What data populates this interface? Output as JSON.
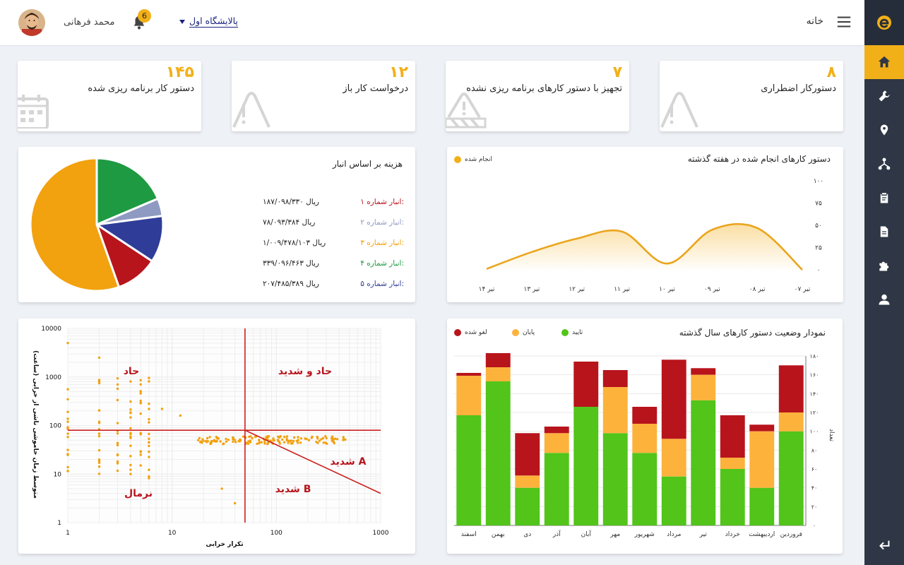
{
  "app": {
    "logo_icon": "logo-e-icon"
  },
  "header": {
    "title": "خانه",
    "warehouse_selected": "پالایشگاه اول",
    "notification_count": "6",
    "user_name": "محمد فرهانی"
  },
  "sidebar": {
    "items": [
      {
        "name": "home",
        "icon": "home-icon",
        "active": true
      },
      {
        "name": "tools",
        "icon": "wrench-icon",
        "active": false
      },
      {
        "name": "locations",
        "icon": "location-icon",
        "active": false
      },
      {
        "name": "structure",
        "icon": "hierarchy-icon",
        "active": false
      },
      {
        "name": "work-orders",
        "icon": "clipboard-icon",
        "active": false
      },
      {
        "name": "documents",
        "icon": "document-icon",
        "active": false
      },
      {
        "name": "parts",
        "icon": "puzzle-icon",
        "active": false
      },
      {
        "name": "users",
        "icon": "person-icon",
        "active": false
      }
    ],
    "logout_icon": "logout-icon"
  },
  "stats": [
    {
      "value": "۸",
      "label": "دستورکار اضطراری",
      "icon": "warning-icon"
    },
    {
      "value": "۷",
      "label": "تجهیز با دستور کارهای برنامه ریزی نشده",
      "icon": "warning-barrier-icon"
    },
    {
      "value": "۱۲",
      "label": "درخواست کار باز",
      "icon": "warning-icon"
    },
    {
      "value": "۱۴۵",
      "label": "دستور کار برنامه ریزی شده",
      "icon": "calendar-icon"
    }
  ],
  "pie": {
    "title": "هزینه بر اساس انبار",
    "rows": [
      {
        "name": "انبار شماره ۱:",
        "value": "۱۸۷/۰۹۸/۳۳۰ ریال",
        "color": "#b8141c"
      },
      {
        "name": "انبار شماره ۲:",
        "value": "۷۸/۰۹۳/۳۸۴ ریال",
        "color": "#8f9ac2"
      },
      {
        "name": "انبار شماره ۳:",
        "value": "۱/۰۰۹/۴۷۸/۱۰۳ ریال",
        "color": "#f2a10f"
      },
      {
        "name": "انبار شماره ۴:",
        "value": "۳۳۹/۰۹۶/۴۶۳ ریال",
        "color": "#1e9a42"
      },
      {
        "name": "انبار شماره ۵:",
        "value": "۲۰۷/۴۸۵/۳۸۹ ریال",
        "color": "#2f3d99"
      }
    ]
  },
  "colors": {
    "accent": "#f2b018",
    "green": "#52c41a",
    "orange": "#fdb23c",
    "red": "#b8141c"
  },
  "chart_data": [
    {
      "type": "pie",
      "title": "هزینه بر اساس انبار",
      "slices": [
        {
          "label": "انبار شماره ۱",
          "value": 187098330,
          "color": "#b8141c"
        },
        {
          "label": "انبار شماره ۲",
          "value": 78093384,
          "color": "#8f9ac2"
        },
        {
          "label": "انبار شماره ۳",
          "value": 1009478103,
          "color": "#f2a10f"
        },
        {
          "label": "انبار شماره ۴",
          "value": 339096463,
          "color": "#1e9a42"
        },
        {
          "label": "انبار شماره ۵",
          "value": 207485389,
          "color": "#2f3d99"
        }
      ]
    },
    {
      "type": "area",
      "title": "دستور کارهای انجام شده در هفته گذشته",
      "legend": "انجام شده",
      "categories": [
        "۱۴ تیر",
        "۱۳ تیر",
        "۱۲ تیر",
        "۱۱ تیر",
        "۱۰ تیر",
        "۰۹ تیر",
        "۰۸ تیر",
        "۰۷ تیر"
      ],
      "values": [
        1,
        20,
        35,
        43,
        7,
        45,
        47,
        0
      ],
      "yticks": [
        "۰",
        "۲۵",
        "۵۰",
        "۷۵",
        "۱۰۰"
      ],
      "ylim": [
        0,
        100
      ]
    },
    {
      "type": "scatter",
      "xlabel": "تکرار خرابی",
      "ylabel": "متوسط زمان خاموشی ناشی از خرابی (ساعت)",
      "xscale": "log",
      "yscale": "log",
      "xlim": [
        1,
        1000
      ],
      "ylim": [
        1,
        10000
      ],
      "xticks": [
        "1",
        "10",
        "100",
        "1000"
      ],
      "yticks": [
        "1",
        "10",
        "100",
        "1000",
        "10000"
      ],
      "quadrants": [
        "حاد",
        "حاد و شدید",
        "نرمال",
        "شدید B",
        "شدید A"
      ],
      "thresholds": {
        "x": 50,
        "y": 80
      }
    },
    {
      "type": "bar",
      "stacked": true,
      "title": "نمودار وضعیت دستور کارهای سال گذشته",
      "ylabel": "تعداد",
      "categories": [
        "فروردین",
        "اردیبهشت",
        "خرداد",
        "تیر",
        "مرداد",
        "شهریور",
        "مهر",
        "آبان",
        "آذر",
        "دی",
        "بهمن",
        "اسفند"
      ],
      "series": [
        {
          "name": "تایید",
          "color": "#52c41a",
          "values": [
            100,
            40,
            60,
            133,
            52,
            77,
            98,
            126,
            77,
            40,
            153,
            117
          ]
        },
        {
          "name": "پایان",
          "color": "#fdb23c",
          "values": [
            20,
            60,
            12,
            27,
            40,
            31,
            49,
            0,
            21,
            13,
            15,
            42
          ]
        },
        {
          "name": "لغو شده",
          "color": "#b8141c",
          "values": [
            50,
            7,
            45,
            7,
            84,
            18,
            18,
            48,
            7,
            45,
            15,
            3
          ]
        }
      ],
      "yticks": [
        "۰",
        "۲۰",
        "۴۰",
        "۶۰",
        "۸۰",
        "۱۰۰",
        "۱۲۰",
        "۱۴۰",
        "۱۶۰",
        "۱۸۰"
      ],
      "ylim": [
        0,
        180
      ]
    }
  ]
}
